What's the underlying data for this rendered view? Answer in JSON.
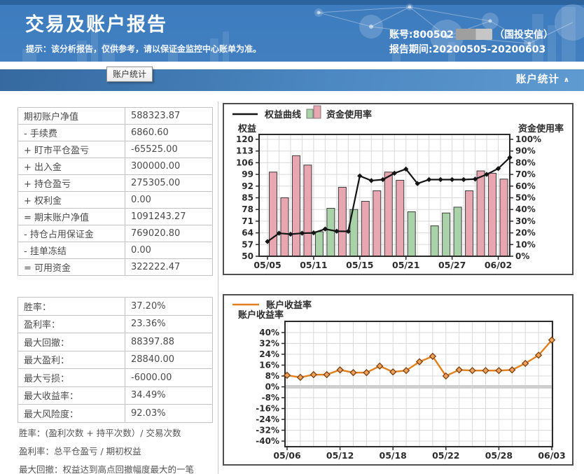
{
  "header": {
    "title": "交易及账户报告",
    "subtitle": "提示：该分析报告，仅供参考，请以保证金监控中心账单为准。",
    "account_prefix": "账号:800502",
    "account_suffix": "（国投安信）",
    "period": "报告期间:20200505-20200603",
    "tab_tooltip": "账户统计",
    "nav_right": "账户统计",
    "nav_right_arrow": "∧"
  },
  "account_table": {
    "rows": [
      {
        "label": "期初账户净值",
        "value": "588323.87"
      },
      {
        "label": "- 手续费",
        "value": "6860.60"
      },
      {
        "label": "+ 盯市平仓盈亏",
        "value": "-65525.00"
      },
      {
        "label": "+ 出入金",
        "value": "300000.00"
      },
      {
        "label": "+ 持仓盈亏",
        "value": "275305.00"
      },
      {
        "label": "+ 权利金",
        "value": "0.00"
      },
      {
        "label": "= 期末账户净值",
        "value": "1091243.27"
      },
      {
        "label": "- 持仓占用保证金",
        "value": "769020.80"
      },
      {
        "label": "- 挂单冻结",
        "value": "0.00"
      },
      {
        "label": "= 可用资金",
        "value": "322222.47"
      }
    ]
  },
  "stats_table": {
    "rows": [
      {
        "label": "胜率：",
        "value": "37.20%"
      },
      {
        "label": "盈利率：",
        "value": "23.36%"
      },
      {
        "label": "最大回撤：",
        "value": "88397.88"
      },
      {
        "label": "最大盈利：",
        "value": "28840.00"
      },
      {
        "label": "最大亏损：",
        "value": "-6000.00"
      },
      {
        "label": "最大收益率：",
        "value": "34.49%"
      },
      {
        "label": "最大风险度：",
        "value": "92.03%"
      }
    ]
  },
  "footnotes": [
    "胜率：(盈利次数 + 持平次数）/ 交易次数",
    "盈利率：总平仓盈亏 / 期初权益",
    "最大回撤：权益达到高点回撤幅度最大的一笔"
  ],
  "colors": {
    "bar_pink": "#E7A6B0",
    "bar_green": "#A9D2A9",
    "bar_stroke": "#3c3c3c",
    "equity_line": "#141414",
    "return_line": "#E2811C",
    "return_marker_fill": "#F0A25A",
    "return_marker_stroke": "#7a4010",
    "grid": "#d9d9d9",
    "zero_band": "#cfcfcf",
    "frame": "#2b2b2b",
    "header_blue": "#3d7cbe"
  },
  "chart_data": [
    {
      "type": "bar",
      "title": "",
      "legend": [
        "权益曲线",
        "资金使用率"
      ],
      "left_axis_label": "权益",
      "right_axis_label": "资金使用率",
      "left_ticks": [
        120,
        113,
        106,
        99,
        92,
        85,
        78,
        71,
        64,
        57,
        50
      ],
      "right_ticks": [
        "100%",
        "90%",
        "80%",
        "70%",
        "60%",
        "50%",
        "40%",
        "30%",
        "20%",
        "10%",
        "0%"
      ],
      "left_range": [
        50,
        120
      ],
      "x_labels": [
        "05/05",
        "05/11",
        "05/15",
        "05/21",
        "05/27",
        "06/02"
      ],
      "x_label_slots": [
        0,
        4,
        8,
        12,
        16,
        20
      ],
      "categories": [
        "05/05",
        "05/06",
        "05/07",
        "05/08",
        "05/11",
        "05/12",
        "05/13",
        "05/14",
        "05/15",
        "05/18",
        "05/19",
        "05/20",
        "05/21",
        "05/22",
        "05/25",
        "05/26",
        "05/27",
        "05/28",
        "05/29",
        "06/01",
        "06/02",
        "06/03"
      ],
      "series": [
        {
          "name": "权益曲线",
          "type": "line",
          "axis": "left",
          "values": [
            58.8,
            63.8,
            63.2,
            63.8,
            64.0,
            66.3,
            65.0,
            64.9,
            98.1,
            95.3,
            95.9,
            99.7,
            102.2,
            93.5,
            95.9,
            95.9,
            95.9,
            95.9,
            96.2,
            99.0,
            102.5,
            109.1
          ]
        },
        {
          "name": "资金使用率",
          "type": "bar",
          "axis": "right_percent",
          "values": [
            72,
            50,
            86,
            78,
            21,
            41,
            59,
            40,
            47,
            56,
            72,
            65,
            38,
            null,
            26,
            37,
            42,
            56,
            73,
            71,
            66,
            null
          ],
          "bar_colors": [
            "pink",
            "pink",
            "pink",
            "pink",
            "green",
            "green",
            "pink",
            "green",
            "pink",
            "pink",
            "pink",
            "pink",
            "green",
            null,
            "green",
            "green",
            "green",
            "pink",
            "pink",
            "pink",
            "pink",
            null
          ]
        }
      ]
    },
    {
      "type": "line",
      "title": "",
      "legend": [
        "账户收益率"
      ],
      "y_axis_label": "账户收益率",
      "y_ticks": [
        "40%",
        "32%",
        "24%",
        "16%",
        "8%",
        "0%",
        "-8%",
        "-16%",
        "-24%",
        "-32%",
        "-40%"
      ],
      "y_range": [
        -40,
        40
      ],
      "x_labels": [
        "05/06",
        "05/12",
        "05/18",
        "05/22",
        "05/28",
        "06/03"
      ],
      "x_label_slots": [
        0,
        4,
        8,
        12,
        16,
        20
      ],
      "categories": [
        "05/06",
        "05/07",
        "05/08",
        "05/11",
        "05/12",
        "05/13",
        "05/14",
        "05/15",
        "05/18",
        "05/19",
        "05/20",
        "05/21",
        "05/22",
        "05/25",
        "05/26",
        "05/27",
        "05/28",
        "05/29",
        "06/01",
        "06/02",
        "06/03"
      ],
      "series": [
        {
          "name": "账户收益率",
          "type": "line",
          "values": [
            8.5,
            7.0,
            9.0,
            9.0,
            12.5,
            10.5,
            10.5,
            15.3,
            11.0,
            12.0,
            18.5,
            22.5,
            8.0,
            12.5,
            12.0,
            12.0,
            12.0,
            12.5,
            17.3,
            23.3,
            34.5
          ]
        }
      ]
    }
  ]
}
